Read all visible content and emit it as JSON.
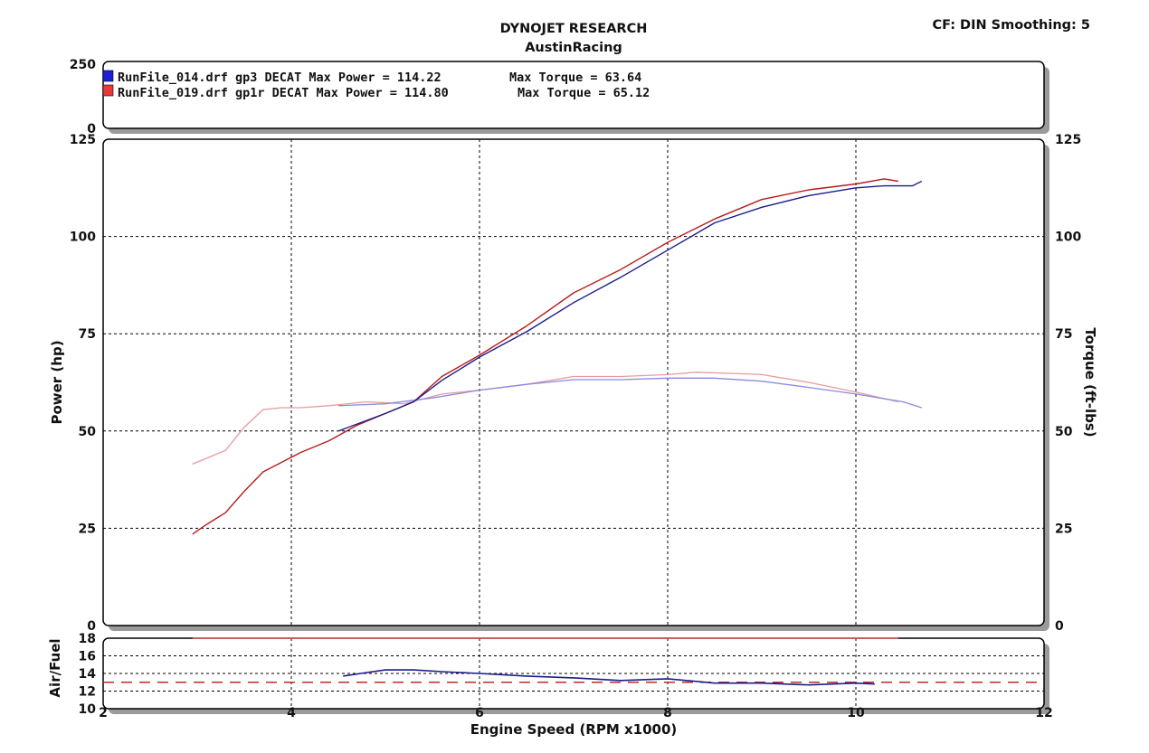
{
  "header": {
    "title": "DYNOJET RESEARCH",
    "subtitle": "AustinRacing",
    "settings": "CF: DIN  Smoothing: 5"
  },
  "legend": {
    "axis_top": "250",
    "axis_bottom": "0",
    "entries": [
      {
        "text": "RunFile_014.drf gp3 DECAT Max Power = 114.22",
        "torque_text": "Max Torque = 63.64",
        "color": "#1f1fd6"
      },
      {
        "text": "RunFile_019.drf gp1r DECAT Max Power = 114.80",
        "torque_text": "Max Torque = 65.12",
        "color": "#e83a3a"
      }
    ]
  },
  "chart_data": [
    {
      "type": "line",
      "xlabel": "Engine Speed (RPM x1000)",
      "ylabel": "Power (hp)",
      "y2label": "Torque (ft-lbs)",
      "xlim": [
        2,
        12
      ],
      "ylim": [
        0,
        125
      ],
      "y2lim": [
        0,
        125
      ],
      "xticks": [
        "2",
        "4",
        "6",
        "8",
        "10",
        "12"
      ],
      "yticks": [
        "0",
        "25",
        "50",
        "75",
        "100",
        "125"
      ],
      "y2ticks": [
        "0",
        "25",
        "50",
        "75",
        "100",
        "125"
      ],
      "grid": true,
      "series": [
        {
          "name": "RunFile_014.drf gp3 DECAT",
          "measure": "power",
          "axis": "left",
          "color": "#1c1c8c",
          "x": [
            4.5,
            5.0,
            5.3,
            5.6,
            6.0,
            6.5,
            7.0,
            7.5,
            8.0,
            8.5,
            9.0,
            9.5,
            10.0,
            10.3,
            10.6,
            10.7
          ],
          "y": [
            50,
            54.5,
            57.5,
            63,
            69,
            75.5,
            83,
            89.5,
            96.5,
            103.5,
            107.5,
            110.5,
            112.5,
            113,
            113,
            114.2
          ]
        },
        {
          "name": "RunFile_019.drf gp1r DECAT",
          "measure": "power",
          "axis": "left",
          "color": "#b51c1c",
          "x": [
            2.95,
            3.1,
            3.3,
            3.5,
            3.7,
            3.9,
            4.1,
            4.4,
            4.7,
            5.0,
            5.3,
            5.6,
            6.0,
            6.5,
            7.0,
            7.5,
            8.0,
            8.5,
            9.0,
            9.5,
            10.0,
            10.3,
            10.45
          ],
          "y": [
            23.5,
            26,
            29,
            34.5,
            39.5,
            42,
            44.5,
            47.5,
            51.5,
            54.5,
            57.5,
            64,
            69.5,
            77,
            85.5,
            91.5,
            98.5,
            104.5,
            109.5,
            112,
            113.5,
            114.8,
            114.2
          ]
        },
        {
          "name": "RunFile_014.drf gp3 DECAT",
          "measure": "torque",
          "axis": "right",
          "color": "#8a8ae0",
          "x": [
            4.5,
            5.0,
            5.5,
            6.0,
            6.5,
            7.0,
            7.5,
            8.0,
            8.5,
            9.0,
            9.5,
            10.0,
            10.5,
            10.7
          ],
          "y": [
            56.5,
            57,
            58.5,
            60.5,
            62,
            63.2,
            63.2,
            63.6,
            63.6,
            62.8,
            61.2,
            59.5,
            57.5,
            56
          ]
        },
        {
          "name": "RunFile_019.drf gp1r DECAT",
          "measure": "torque",
          "axis": "right",
          "color": "#e89aa0",
          "x": [
            2.95,
            3.1,
            3.3,
            3.5,
            3.7,
            3.9,
            4.1,
            4.4,
            4.8,
            5.2,
            5.6,
            6.0,
            6.5,
            7.0,
            7.5,
            8.0,
            8.3,
            8.7,
            9.0,
            9.5,
            10.0,
            10.45
          ],
          "y": [
            41.5,
            43,
            45,
            51,
            55.5,
            56,
            56,
            56.5,
            57.5,
            57,
            59.5,
            60.5,
            62,
            64,
            64,
            64.5,
            65.1,
            64.8,
            64.5,
            62.5,
            60,
            57.5
          ]
        }
      ]
    },
    {
      "type": "line",
      "ylabel": "Air/Fuel",
      "xlim": [
        2,
        12
      ],
      "ylim": [
        10,
        18
      ],
      "yticks": [
        "10",
        "12",
        "14",
        "16",
        "18"
      ],
      "grid": true,
      "reference_line": {
        "y": 13.0,
        "color": "#c62828",
        "style": "dashed"
      },
      "series": [
        {
          "name": "RunFile_014.drf gp3 DECAT",
          "measure": "air_fuel",
          "color": "#1c1c8c",
          "x": [
            4.55,
            4.8,
            5.0,
            5.3,
            5.6,
            6.0,
            6.5,
            7.0,
            7.5,
            8.0,
            8.5,
            9.0,
            9.5,
            10.0,
            10.2
          ],
          "y": [
            13.7,
            14.1,
            14.4,
            14.4,
            14.2,
            14.0,
            13.7,
            13.5,
            13.2,
            13.4,
            12.9,
            12.9,
            12.7,
            12.9,
            12.8
          ]
        },
        {
          "name": "RunFile_019.drf gp1r DECAT",
          "measure": "air_fuel",
          "color": "#e05656",
          "x": [
            2.95,
            4.0,
            6.0,
            8.0,
            10.0,
            10.45
          ],
          "y": [
            18,
            18,
            18,
            18,
            18,
            18
          ]
        }
      ]
    }
  ]
}
